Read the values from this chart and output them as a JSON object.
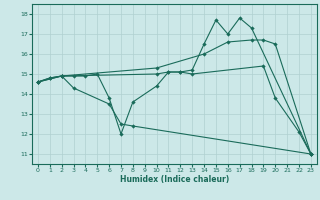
{
  "background_color": "#cce8e8",
  "grid_color": "#b0d0d0",
  "line_color": "#1a6b5a",
  "xlabel": "Humidex (Indice chaleur)",
  "ylim": [
    10.5,
    18.5
  ],
  "xlim": [
    -0.5,
    23.5
  ],
  "yticks": [
    11,
    12,
    13,
    14,
    15,
    16,
    17,
    18
  ],
  "xticks": [
    0,
    1,
    2,
    3,
    4,
    5,
    6,
    7,
    8,
    9,
    10,
    11,
    12,
    13,
    14,
    15,
    16,
    17,
    18,
    19,
    20,
    21,
    22,
    23
  ],
  "lines": [
    [
      0,
      14.6,
      1,
      14.8,
      2,
      14.9,
      3,
      14.3,
      6,
      13.5,
      7,
      12.5,
      8,
      12.4,
      23,
      11.0
    ],
    [
      0,
      14.6,
      2,
      14.9,
      10,
      15.0,
      11,
      15.1,
      12,
      15.1,
      13,
      15.2,
      14,
      16.5,
      15,
      17.7,
      16,
      17.0,
      17,
      17.8,
      18,
      17.3,
      23,
      11.0
    ],
    [
      0,
      14.6,
      2,
      14.9,
      10,
      15.3,
      14,
      16.0,
      16,
      16.6,
      18,
      16.7,
      19,
      16.7,
      20,
      16.5,
      23,
      11.0
    ],
    [
      0,
      14.6,
      1,
      14.8,
      2,
      14.9,
      3,
      14.9,
      4,
      14.9,
      5,
      15.0,
      6,
      13.8,
      7,
      12.0,
      8,
      13.6,
      10,
      14.4,
      11,
      15.1,
      12,
      15.1,
      13,
      15.0,
      19,
      15.4,
      20,
      13.8,
      22,
      12.1,
      23,
      11.0
    ]
  ]
}
